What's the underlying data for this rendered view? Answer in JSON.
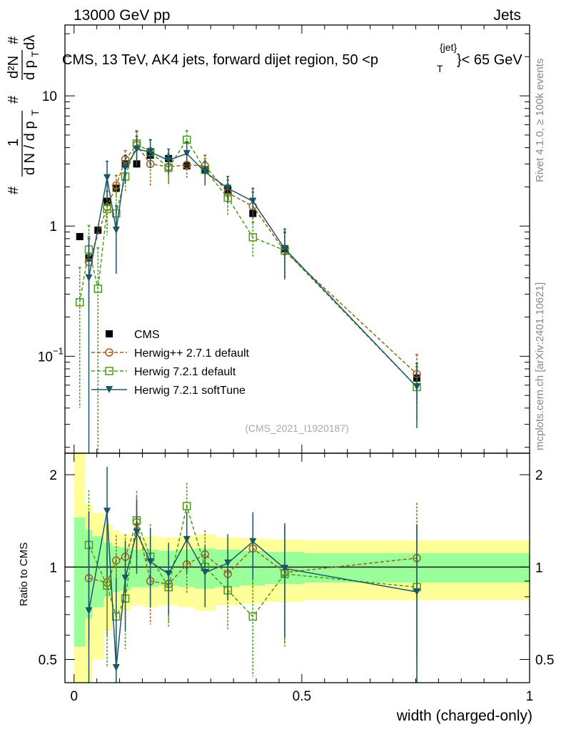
{
  "header": {
    "left": "13000 GeV pp",
    "right": "Jets"
  },
  "side_labels": {
    "rivet": "Rivet 4.1.0, ≥ 100k events",
    "mcplots": "mcplots.cern.ch [arXiv:2401.10621]"
  },
  "chart_data": {
    "type": "line",
    "title": "CMS, 13 TeV, AK4 jets, forward dijet region, 50 <p_T^{jet}< 65 GeV",
    "title_parts": {
      "a": "CMS, 13 TeV, AK4 jets, forward dijet region, 50 <p",
      "sub": "T",
      "sup": "{jet}",
      "b": "}< 65 GeV"
    },
    "ylabel": "1/N dN/dpT d²N/dpT dλ",
    "ylabel_parts": {
      "hash": "#",
      "one": "1",
      "dn": "d N / d p",
      "t": "T",
      "d2n": "d²N",
      "dpt": "d p",
      "dl": "dλ"
    },
    "ratio_ylabel": "Ratio to CMS",
    "xlabel": "width (charged-only)",
    "watermark": "(CMS_2021_I1920187)",
    "xlim": [
      -0.02,
      1.0
    ],
    "ylim": [
      0.018,
      35
    ],
    "yscale": "log",
    "ratio_ylim": [
      0.42,
      2.35
    ],
    "ratio_yscale": "log",
    "x_ticks": [
      {
        "v": 0,
        "label": "0"
      },
      {
        "v": 0.5,
        "label": "0.5"
      },
      {
        "v": 1,
        "label": "1"
      }
    ],
    "y_ticks": [
      {
        "v": 0.1,
        "base": "10",
        "exp": "−1"
      },
      {
        "v": 1,
        "label": "1"
      },
      {
        "v": 10,
        "label": "10"
      }
    ],
    "ratio_ticks": [
      {
        "v": 0.5,
        "label": "0.5"
      },
      {
        "v": 1,
        "label": "1"
      },
      {
        "v": 2,
        "label": "2"
      }
    ],
    "x": [
      0.0125,
      0.0325,
      0.0525,
      0.0725,
      0.0925,
      0.1125,
      0.1375,
      0.1675,
      0.2075,
      0.2475,
      0.2875,
      0.3375,
      0.3925,
      0.4625,
      0.7525
    ],
    "bands": {
      "edges": [
        0.0,
        0.025,
        0.04,
        0.065,
        0.085,
        0.1,
        0.125,
        0.15,
        0.185,
        0.23,
        0.265,
        0.31,
        0.365,
        0.42,
        0.505,
        1.0
      ],
      "inner": [
        0.55,
        0.68,
        0.74,
        0.8,
        0.83,
        0.84,
        0.86,
        0.86,
        0.87,
        0.86,
        0.85,
        0.86,
        0.87,
        0.88,
        0.89
      ],
      "outer": [
        0.0,
        0.4,
        0.5,
        0.62,
        0.68,
        0.72,
        0.75,
        0.74,
        0.75,
        0.74,
        0.72,
        0.75,
        0.76,
        0.77,
        0.78
      ]
    },
    "series": [
      {
        "name": "CMS",
        "color": "#000000",
        "marker": "square-filled",
        "y": [
          0.83,
          0.57,
          0.93,
          1.55,
          1.95,
          3.0,
          3.0,
          3.5,
          3.3,
          2.9,
          2.7,
          1.9,
          1.25,
          0.67,
          0.068
        ]
      },
      {
        "name": "Herwig++ 2.7.1 default",
        "color": "#a35c17",
        "marker": "circle-open",
        "y": [
          null,
          0.53,
          null,
          1.4,
          2.05,
          3.25,
          4.2,
          3.0,
          2.85,
          2.95,
          2.9,
          1.8,
          1.42,
          0.64,
          0.073
        ],
        "err": [
          null,
          0.3,
          null,
          0.45,
          0.4,
          0.55,
          1.2,
          1.0,
          0.75,
          0.6,
          0.6,
          0.45,
          0.4,
          0.25,
          0.03
        ],
        "ratio": [
          null,
          0.92,
          null,
          0.89,
          1.05,
          1.08,
          1.4,
          0.9,
          0.88,
          1.02,
          1.1,
          0.95,
          1.15,
          0.96,
          1.07
        ],
        "ratio_err": [
          null,
          0.35,
          null,
          0.3,
          0.22,
          0.2,
          0.3,
          0.25,
          0.22,
          0.2,
          0.22,
          0.23,
          0.3,
          0.4,
          0.55
        ]
      },
      {
        "name": "Herwig 7.2.1 default",
        "color": "#4a9a1a",
        "marker": "square-open",
        "y": [
          0.26,
          0.66,
          0.33,
          1.35,
          1.25,
          2.4,
          4.3,
          3.7,
          2.8,
          4.6,
          2.7,
          1.65,
          0.82,
          0.65,
          0.058
        ],
        "err": [
          0.22,
          0.35,
          0.35,
          0.5,
          0.7,
          0.6,
          1.0,
          0.9,
          0.7,
          0.8,
          0.6,
          0.45,
          0.25,
          0.25,
          0.025
        ],
        "ratio": [
          null,
          1.18,
          null,
          0.87,
          0.69,
          0.79,
          1.42,
          1.08,
          0.86,
          1.58,
          1.0,
          0.84,
          0.69,
          0.95,
          0.86
        ],
        "ratio_err": [
          null,
          0.6,
          null,
          0.4,
          0.4,
          0.25,
          0.35,
          0.3,
          0.22,
          0.3,
          0.22,
          0.22,
          0.25,
          0.4,
          0.5
        ]
      },
      {
        "name": "Herwig 7.2.1 softTune",
        "color": "#1b5668",
        "marker": "triangle-down-filled",
        "y": [
          null,
          0.4,
          null,
          2.35,
          0.93,
          2.8,
          3.9,
          3.7,
          3.2,
          3.6,
          2.6,
          1.95,
          1.55,
          0.67,
          0.058
        ],
        "err": [
          null,
          0.4,
          null,
          0.8,
          0.5,
          0.7,
          1.0,
          0.9,
          0.7,
          0.8,
          0.55,
          0.45,
          0.4,
          0.28,
          0.03
        ],
        "ratio": [
          null,
          0.72,
          null,
          1.52,
          0.47,
          0.92,
          1.3,
          1.04,
          0.95,
          1.23,
          0.96,
          1.03,
          1.21,
          0.99,
          0.83
        ],
        "ratio_err": [
          null,
          0.8,
          null,
          0.6,
          0.45,
          0.3,
          0.35,
          0.3,
          0.25,
          0.28,
          0.22,
          0.25,
          0.3,
          0.4,
          0.55
        ]
      }
    ]
  }
}
